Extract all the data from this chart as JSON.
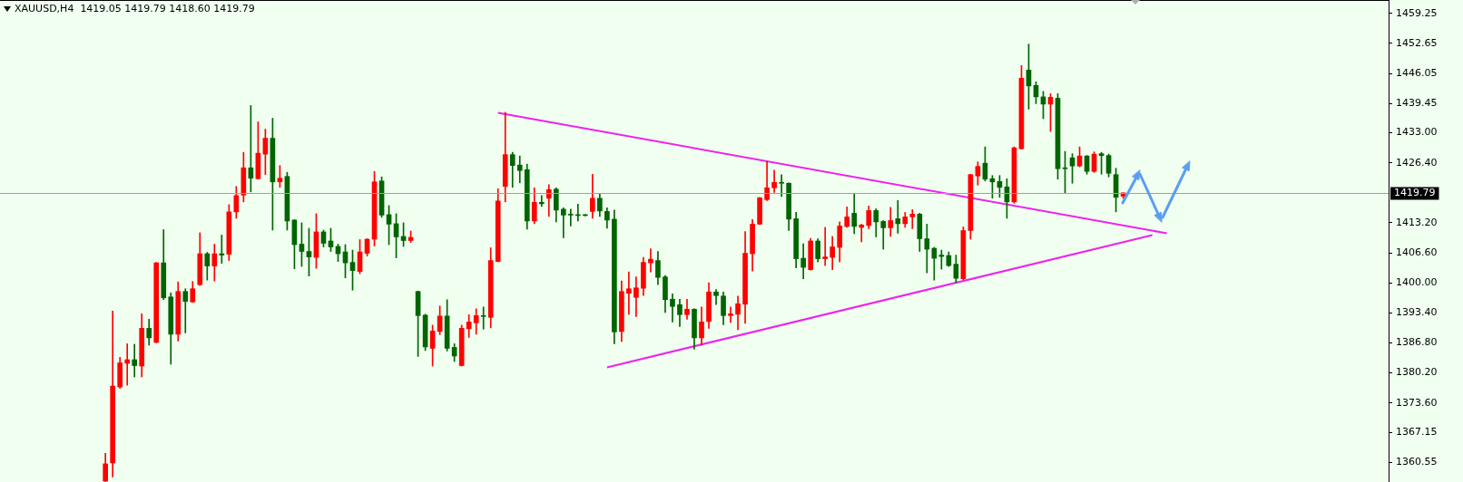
{
  "chart_data": {
    "type": "candlestick",
    "title": "XAUUSD,H4  1419.05 1419.79 1418.60 1419.79",
    "categories": [
      null,
      null,
      null,
      null,
      null,
      null,
      null,
      null,
      null,
      null,
      null,
      null,
      null,
      null,
      null,
      null,
      null,
      null,
      null,
      null,
      null,
      null,
      null,
      null,
      null,
      null,
      null,
      null,
      null,
      null,
      null,
      null,
      null,
      null,
      null,
      null,
      null,
      null,
      null,
      null,
      null,
      null,
      null,
      null,
      null,
      null,
      null,
      null,
      null,
      null,
      null,
      null,
      null,
      null,
      null,
      null,
      null,
      null,
      null,
      null,
      null,
      null,
      null,
      null,
      null,
      null,
      null,
      null,
      null,
      null,
      null,
      null,
      null,
      null,
      null,
      null,
      null,
      null,
      null,
      null,
      null,
      null,
      null,
      null,
      null,
      null,
      null,
      null,
      null,
      null,
      null,
      null,
      null,
      null,
      null,
      null,
      null,
      null,
      null,
      null,
      null,
      null,
      null,
      null,
      null,
      null,
      null,
      null,
      null,
      null,
      null,
      null,
      null,
      null,
      null,
      null,
      null,
      null,
      null,
      null,
      null,
      null,
      null,
      null,
      null,
      null,
      null,
      null,
      null,
      null,
      null,
      null,
      null,
      null,
      null,
      null,
      null,
      null,
      null,
      null,
      null,
      null,
      null,
      null,
      null,
      null,
      null,
      null,
      null,
      null,
      null,
      null,
      null,
      null,
      null,
      null,
      null,
      null,
      null,
      null,
      null,
      null,
      null,
      null,
      null,
      null,
      null,
      null,
      null,
      null,
      null,
      null,
      null,
      null,
      null,
      null,
      null,
      null,
      null,
      null,
      null,
      null,
      null,
      null,
      null,
      null,
      null,
      null,
      null,
      null,
      null
    ],
    "ylim": [
      1356.2,
      1462.2
    ],
    "yticks": [
      1459.25,
      1452.65,
      1446.05,
      1439.45,
      {
        "value": 1433,
        "label": "1433.00"
      },
      {
        "value": 1426.4,
        "label": "1426.40"
      },
      {
        "value": 1413.2,
        "label": "1413.20"
      },
      {
        "value": 1406.6,
        "label": "1406.60"
      },
      {
        "value": 1400,
        "label": "1400.00"
      },
      {
        "value": 1393.4,
        "label": "1393.40"
      },
      {
        "value": 1386.8,
        "label": "1386.80"
      },
      {
        "value": 1380.2,
        "label": "1380.20"
      },
      {
        "value": 1373.6,
        "label": "1373.60"
      },
      1367.15,
      1360.55
    ],
    "tick_labels": "y",
    "ref_lines": [
      {
        "axis": "y",
        "value": 1419.79,
        "label": "1419.79",
        "color": "#a0a0a0"
      }
    ],
    "series": [
      {
        "ohlc": [
          null,
          null,
          null,
          null,
          null,
          null,
          null,
          null,
          null,
          null,
          null,
          null,
          null,
          null,
          [
            1356.4,
            1362.5,
            1356.3,
            1360.2
          ],
          [
            1360.4,
            1393.8,
            1357.3,
            1377.3
          ],
          [
            1377.1,
            1383.6,
            1376.8,
            1382.4
          ],
          [
            1382.3,
            1386.6,
            1377.5,
            1383.1
          ],
          [
            1383.1,
            1386.5,
            1379.3,
            1381.8
          ],
          [
            1381.7,
            1393.2,
            1379.3,
            1390.0
          ],
          [
            1390.0,
            1392.0,
            1386.3,
            1387.9
          ],
          [
            1386.9,
            1404.5,
            1386.8,
            1404.4
          ],
          [
            1404.4,
            1411.7,
            1396.3,
            1396.7
          ],
          [
            1396.9,
            1397.8,
            1382.1,
            1388.7
          ],
          [
            1388.7,
            1400.2,
            1387.2,
            1398.1
          ],
          [
            1398.1,
            1398.7,
            1389.0,
            1395.9
          ],
          [
            1395.8,
            1400.3,
            1395.7,
            1398.7
          ],
          [
            1399.6,
            1411.0,
            1399.4,
            1406.4
          ],
          [
            1406.4,
            1406.7,
            1400.6,
            1403.7
          ],
          [
            1403.7,
            1408.5,
            1400.4,
            1406.4
          ],
          [
            1406.4,
            1410.5,
            1404.3,
            1406.1
          ],
          [
            1406.3,
            1417.2,
            1404.9,
            1415.6
          ],
          [
            1415.6,
            1421.2,
            1414.2,
            1419.2
          ],
          [
            1419.3,
            1428.7,
            1417.8,
            1425.3
          ],
          [
            1425.3,
            1439.0,
            1420.0,
            1423.0
          ],
          [
            1422.9,
            1435.4,
            1422.8,
            1428.5
          ],
          [
            1428.3,
            1433.8,
            1423.8,
            1431.8
          ],
          [
            1431.8,
            1436.2,
            1411.6,
            1422.2
          ],
          [
            1422.2,
            1425.8,
            1421.0,
            1423.0
          ],
          [
            1423.4,
            1424.3,
            1411.6,
            1413.6
          ],
          [
            1413.8,
            1413.9,
            1403.1,
            1408.4
          ],
          [
            1408.5,
            1413.2,
            1403.6,
            1406.9
          ],
          [
            1406.9,
            1412.0,
            1401.5,
            1405.7
          ],
          [
            1405.6,
            1415.2,
            1403.2,
            1411.2
          ],
          [
            1411.2,
            1411.6,
            1407.9,
            1408.7
          ],
          [
            1409.2,
            1412.0,
            1406.9,
            1407.9
          ],
          [
            1408.0,
            1408.5,
            1404.7,
            1406.4
          ],
          [
            1406.8,
            1408.4,
            1401.1,
            1404.4
          ],
          [
            1404.5,
            1407.2,
            1398.4,
            1402.7
          ],
          [
            1402.5,
            1409.5,
            1402.0,
            1406.8
          ],
          [
            1406.5,
            1409.7,
            1405.9,
            1409.6
          ],
          [
            1409.6,
            1424.5,
            1408.1,
            1422.2
          ],
          [
            1422.4,
            1423.3,
            1414.4,
            1414.9
          ],
          [
            1415.0,
            1417.0,
            1408.4,
            1412.9
          ],
          [
            1413.0,
            1415.2,
            1405.5,
            1410.1
          ],
          [
            1410.2,
            1413.2,
            1408.0,
            1409.3
          ],
          [
            1409.3,
            1411.4,
            1408.9,
            1410.0
          ],
          [
            1398.1,
            1398.2,
            1383.8,
            1392.8
          ],
          [
            1392.9,
            1393.1,
            1385.1,
            1385.9
          ],
          [
            1385.6,
            1390.7,
            1381.7,
            1389.4
          ],
          [
            1389.3,
            1394.9,
            1388.6,
            1392.7
          ],
          [
            1392.7,
            1396.3,
            1385.0,
            1385.6
          ],
          [
            1385.8,
            1386.6,
            1382.7,
            1383.9
          ],
          [
            1381.8,
            1390.7,
            1381.7,
            1390.0
          ],
          [
            1389.9,
            1393.0,
            1388.0,
            1391.4
          ],
          [
            1391.2,
            1394.3,
            1388.7,
            1392.8
          ],
          [
            1392.8,
            1394.7,
            1389.8,
            1392.6
          ],
          [
            1392.4,
            1407.7,
            1390.1,
            1404.9
          ],
          [
            1404.7,
            1420.7,
            1404.6,
            1418.0
          ],
          [
            1421.2,
            1437.5,
            1417.8,
            1428.2
          ],
          [
            1428.2,
            1428.7,
            1421.0,
            1425.8
          ],
          [
            1425.9,
            1427.9,
            1422.0,
            1424.7
          ],
          [
            1424.9,
            1426.1,
            1411.8,
            1413.6
          ],
          [
            1413.6,
            1420.9,
            1413.0,
            1417.7
          ],
          [
            1417.7,
            1419.2,
            1416.8,
            1417.4
          ],
          [
            1418.6,
            1421.6,
            1414.6,
            1420.5
          ],
          [
            1420.6,
            1420.9,
            1413.4,
            1416.0
          ],
          [
            1416.2,
            1416.5,
            1409.9,
            1414.9
          ],
          [
            1415.0,
            1416.2,
            1412.5,
            1414.9
          ],
          [
            1415.0,
            1417.3,
            1413.6,
            1414.8
          ],
          [
            1414.9,
            1415.0,
            1414.7,
            1414.8
          ],
          [
            1415.7,
            1423.9,
            1414.2,
            1418.6
          ],
          [
            1418.6,
            1419.6,
            1414.6,
            1415.8
          ],
          [
            1415.7,
            1416.5,
            1412.0,
            1413.8
          ],
          [
            1414.0,
            1416.0,
            1386.6,
            1389.2
          ],
          [
            1389.3,
            1400.4,
            1387.1,
            1398.1
          ],
          [
            1397.7,
            1402.4,
            1393.1,
            1398.7
          ],
          [
            1396.8,
            1401.3,
            1392.6,
            1398.9
          ],
          [
            1398.8,
            1405.6,
            1397.2,
            1404.5
          ],
          [
            1404.4,
            1407.5,
            1402.4,
            1405.2
          ],
          [
            1404.9,
            1406.9,
            1399.6,
            1401.2
          ],
          [
            1401.3,
            1401.6,
            1393.5,
            1396.3
          ],
          [
            1396.4,
            1397.6,
            1391.4,
            1394.8
          ],
          [
            1395.2,
            1396.4,
            1390.4,
            1393.0
          ],
          [
            1393.0,
            1396.4,
            1392.0,
            1394.2
          ],
          [
            1394.2,
            1394.3,
            1385.4,
            1387.9
          ],
          [
            1387.9,
            1394.7,
            1386.3,
            1391.4
          ],
          [
            1391.5,
            1400.0,
            1390.0,
            1398.0
          ],
          [
            1398.0,
            1398.5,
            1395.2,
            1397.2
          ],
          [
            1397.1,
            1398.0,
            1390.8,
            1392.8
          ],
          [
            1392.8,
            1394.7,
            1391.3,
            1393.2
          ],
          [
            1393.1,
            1397.1,
            1389.7,
            1395.4
          ],
          [
            1395.3,
            1411.3,
            1391.1,
            1406.5
          ],
          [
            1406.4,
            1413.9,
            1402.6,
            1412.9
          ],
          [
            1412.9,
            1418.8,
            1412.8,
            1418.7
          ],
          [
            1418.3,
            1426.7,
            1418.1,
            1420.9
          ],
          [
            1420.9,
            1424.8,
            1419.9,
            1422.1
          ],
          [
            1422.1,
            1423.8,
            1419.0,
            1421.9
          ],
          [
            1421.9,
            1422.0,
            1411.5,
            1414.0
          ],
          [
            1414.1,
            1415.5,
            1403.3,
            1405.3
          ],
          [
            1405.4,
            1408.6,
            1400.9,
            1403.4
          ],
          [
            1402.9,
            1409.8,
            1402.8,
            1409.2
          ],
          [
            1409.2,
            1409.7,
            1404.6,
            1405.3
          ],
          [
            1405.3,
            1412.2,
            1403.8,
            1405.7
          ],
          [
            1405.6,
            1410.2,
            1402.9,
            1407.9
          ],
          [
            1407.8,
            1413.4,
            1404.6,
            1412.5
          ],
          [
            1412.4,
            1416.7,
            1412.2,
            1414.5
          ],
          [
            1415.3,
            1419.5,
            1410.8,
            1412.4
          ],
          [
            1412.2,
            1412.9,
            1409.0,
            1412.7
          ],
          [
            1412.6,
            1416.9,
            1411.9,
            1415.9
          ],
          [
            1415.9,
            1416.3,
            1410.1,
            1413.4
          ],
          [
            1413.5,
            1413.7,
            1407.4,
            1412.1
          ],
          [
            1412.1,
            1416.6,
            1410.2,
            1413.7
          ],
          [
            1414.1,
            1418.1,
            1410.9,
            1413.0
          ],
          [
            1413.0,
            1415.5,
            1412.2,
            1414.5
          ],
          [
            1414.5,
            1416.1,
            1411.9,
            1415.1
          ],
          [
            1415.1,
            1415.3,
            1406.9,
            1409.7
          ],
          [
            1409.7,
            1412.9,
            1402.2,
            1407.4
          ],
          [
            1407.6,
            1407.8,
            1400.6,
            1405.4
          ],
          [
            1406.1,
            1407.2,
            1403.0,
            1405.8
          ],
          [
            1406.0,
            1406.8,
            1403.6,
            1403.8
          ],
          [
            1404.1,
            1406.1,
            1400.0,
            1401.0
          ],
          [
            1400.9,
            1412.3,
            1400.7,
            1411.5
          ],
          [
            1411.5,
            1423.9,
            1409.6,
            1423.8
          ],
          [
            1423.5,
            1426.6,
            1421.5,
            1425.6
          ],
          [
            1426.3,
            1429.9,
            1422.4,
            1422.8
          ],
          [
            1422.9,
            1423.6,
            1418.6,
            1422.2
          ],
          [
            1422.3,
            1423.6,
            1418.8,
            1421.0
          ],
          [
            1421.1,
            1422.9,
            1414.2,
            1417.8
          ],
          [
            1417.8,
            1429.9,
            1417.5,
            1429.7
          ],
          [
            1429.5,
            1447.8,
            1429.4,
            1445.0
          ],
          [
            1446.8,
            1452.5,
            1438.2,
            1443.3
          ],
          [
            1443.4,
            1444.2,
            1439.4,
            1440.9
          ],
          [
            1440.9,
            1442.1,
            1436.1,
            1439.3
          ],
          [
            1439.3,
            1441.6,
            1433.3,
            1440.8
          ],
          [
            1440.6,
            1441.6,
            1422.8,
            1425.1
          ],
          [
            1425.3,
            1428.9,
            1419.8,
            1425.1
          ],
          [
            1427.5,
            1428.4,
            1421.9,
            1425.7
          ],
          [
            1425.7,
            1429.9,
            1425.5,
            1427.9
          ],
          [
            1427.9,
            1428.0,
            1423.9,
            1424.5
          ],
          [
            1424.5,
            1428.8,
            1424.3,
            1428.3
          ],
          [
            1428.4,
            1428.7,
            1423.9,
            1428.0
          ],
          [
            1428.0,
            1428.3,
            1423.3,
            1424.1
          ],
          [
            1423.8,
            1425.2,
            1415.6,
            1418.8
          ],
          [
            1419.05,
            1419.79,
            1418.6,
            1419.79
          ],
          null,
          null,
          null,
          null,
          null,
          null,
          null,
          null,
          null,
          null,
          null,
          null,
          null,
          null,
          null,
          null,
          null,
          null,
          null,
          null,
          null,
          null,
          null,
          null,
          null,
          null,
          null,
          null,
          null,
          null,
          null,
          null,
          null,
          null,
          null,
          null
        ],
        "colors": [
          null,
          null,
          null,
          null,
          null,
          null,
          null,
          null,
          null,
          null,
          null,
          null,
          null,
          null,
          "#ff0000",
          "#ff0000",
          "#ff0000",
          "#ff0000",
          "#006400",
          "#ff0000",
          "#006400",
          "#ff0000",
          "#006400",
          "#006400",
          "#ff0000",
          "#006400",
          "#ff0000",
          "#ff0000",
          "#006400",
          "#ff0000",
          "#006400",
          "#ff0000",
          "#ff0000",
          "#ff0000",
          "#006400",
          "#ff0000",
          "#ff0000",
          "#006400",
          "#ff0000",
          "#006400",
          "#006400",
          "#006400",
          "#006400",
          "#ff0000",
          "#006400",
          "#006400",
          "#006400",
          "#006400",
          "#006400",
          "#ff0000",
          "#ff0000",
          "#ff0000",
          "#006400",
          "#006400",
          "#006400",
          "#006400",
          "#ff0000",
          "#006400",
          "#006400",
          "#ff0000",
          "#ff0000",
          "#006400",
          "#006400",
          "#ff0000",
          "#ff0000",
          "#ff0000",
          "#006400",
          "#ff0000",
          "#ff0000",
          "#ff0000",
          "#006400",
          "#006400",
          "#006400",
          "#ff0000",
          "#006400",
          "#ff0000",
          "#006400",
          "#006400",
          "#006400",
          "#006400",
          "#006400",
          "#ff0000",
          "#006400",
          "#006400",
          "#006400",
          "#ff0000",
          "#ff0000",
          "#ff0000",
          "#ff0000",
          "#ff0000",
          "#006400",
          "#006400",
          "#006400",
          "#006400",
          "#ff0000",
          "#006400",
          "#ff0000",
          "#ff0000",
          "#006400",
          "#006400",
          "#ff0000",
          "#ff0000",
          "#ff0000",
          "#ff0000",
          "#ff0000",
          "#ff0000",
          "#ff0000",
          "#006400",
          "#006400",
          "#006400",
          "#006400",
          "#ff0000",
          "#006400",
          "#ff0000",
          "#ff0000",
          "#ff0000",
          "#ff0000",
          "#006400",
          "#ff0000",
          "#ff0000",
          "#006400",
          "#006400",
          "#ff0000",
          "#006400",
          "#ff0000",
          "#ff0000",
          "#006400",
          "#006400",
          "#006400",
          "#006400",
          "#006400",
          "#006400",
          "#ff0000",
          "#ff0000",
          "#ff0000",
          "#006400",
          "#006400",
          "#006400",
          "#006400",
          "#ff0000",
          "#ff0000",
          "#006400",
          "#006400",
          "#006400",
          "#ff0000",
          "#006400",
          "#006400",
          "#006400",
          "#ff0000",
          "#006400",
          "#ff0000",
          "#006400",
          "#006400",
          "#006400",
          "#ff0000",
          null,
          null,
          null,
          null,
          null,
          null,
          null,
          null,
          null,
          null,
          null,
          null,
          null,
          null,
          null,
          null,
          null,
          null,
          null,
          null,
          null,
          null,
          null,
          null,
          null,
          null,
          null,
          null,
          null,
          null,
          null,
          null,
          null,
          null,
          null,
          null
        ]
      },
      {
        "type": "line",
        "color": "#ee22ee",
        "values": [
          null,
          null,
          null,
          null,
          null,
          null,
          null,
          null,
          null,
          null,
          null,
          null,
          null,
          null,
          null,
          null,
          null,
          null,
          null,
          null,
          null,
          null,
          null,
          null,
          null,
          null,
          null,
          null,
          null,
          null,
          null,
          null,
          null,
          null,
          null,
          null,
          null,
          null,
          null,
          null,
          null,
          null,
          null,
          null,
          null,
          null,
          null,
          null,
          null,
          null,
          null,
          null,
          null,
          null,
          null,
          null,
          null,
          null,
          null,
          null,
          null,
          null,
          null,
          null,
          null,
          null,
          null,
          null,
          1437.4,
          null,
          null,
          null,
          null,
          null,
          null,
          null,
          null,
          null,
          null,
          null,
          null,
          null,
          null,
          null,
          null,
          null,
          null,
          null,
          null,
          null,
          null,
          null,
          null,
          null,
          null,
          null,
          null,
          null,
          null,
          null,
          null,
          null,
          null,
          null,
          null,
          null,
          null,
          null,
          null,
          null,
          null,
          null,
          null,
          null,
          null,
          null,
          null,
          null,
          null,
          null,
          null,
          null,
          null,
          null,
          null,
          null,
          null,
          null,
          null,
          null,
          null,
          null,
          null,
          null,
          null,
          null,
          null,
          null,
          null,
          null,
          null,
          null,
          null,
          null,
          null,
          null,
          null,
          null,
          null,
          null,
          null,
          null,
          null,
          null,
          null,
          null,
          null,
          null,
          null,
          null,
          1410.9,
          null,
          null,
          null,
          null,
          null,
          null,
          null,
          null,
          null,
          null,
          null,
          null,
          null,
          null,
          null,
          null,
          null,
          null,
          null,
          null,
          null,
          null,
          null,
          null,
          null,
          null,
          null,
          null,
          null,
          null
        ]
      },
      {
        "type": "line",
        "color": "#ee22ee",
        "values": [
          null,
          null,
          null,
          null,
          null,
          null,
          null,
          null,
          null,
          null,
          null,
          null,
          null,
          null,
          null,
          null,
          null,
          null,
          null,
          null,
          null,
          null,
          null,
          null,
          null,
          null,
          null,
          null,
          null,
          null,
          null,
          null,
          null,
          null,
          null,
          null,
          null,
          null,
          null,
          null,
          null,
          null,
          null,
          null,
          null,
          null,
          null,
          null,
          null,
          null,
          null,
          null,
          null,
          null,
          null,
          null,
          null,
          null,
          null,
          null,
          null,
          null,
          null,
          null,
          null,
          null,
          null,
          null,
          null,
          null,
          null,
          null,
          null,
          null,
          null,
          null,
          null,
          null,
          null,
          null,
          null,
          null,
          null,
          1381.4,
          null,
          null,
          null,
          null,
          null,
          null,
          null,
          null,
          null,
          null,
          null,
          null,
          null,
          null,
          null,
          null,
          null,
          null,
          null,
          null,
          null,
          null,
          null,
          null,
          null,
          null,
          null,
          null,
          null,
          null,
          null,
          null,
          null,
          null,
          null,
          null,
          null,
          null,
          null,
          null,
          null,
          null,
          null,
          null,
          null,
          null,
          null,
          null,
          null,
          null,
          null,
          null,
          null,
          null,
          null,
          null,
          null,
          null,
          null,
          null,
          null,
          null,
          null,
          null,
          null,
          null,
          null,
          null,
          null,
          null,
          null,
          null,
          null,
          null,
          1410.5,
          null,
          null,
          null,
          null,
          null,
          null,
          null,
          null,
          null,
          null,
          null,
          null,
          null,
          null,
          null,
          null,
          null,
          null,
          null,
          null,
          null,
          null,
          null,
          null,
          null,
          null,
          null,
          null,
          null,
          null,
          null,
          null
        ]
      }
    ]
  }
}
